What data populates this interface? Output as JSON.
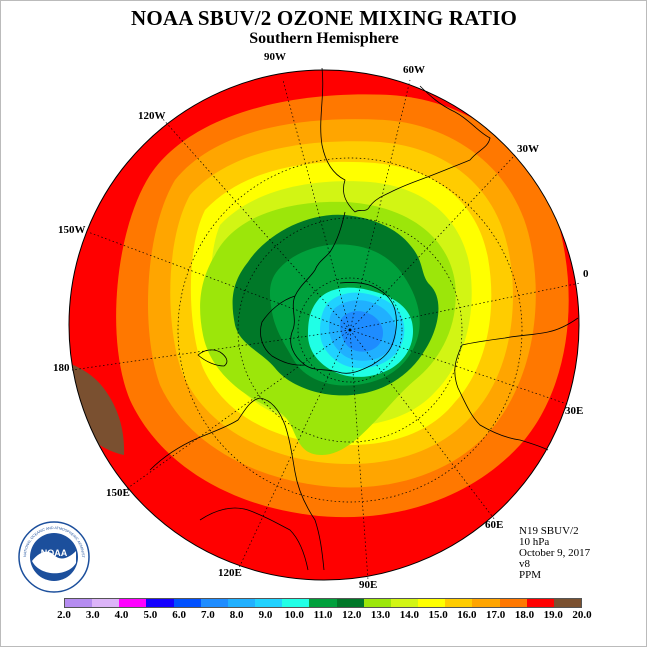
{
  "title": "NOAA SBUV/2 OZONE MIXING RATIO",
  "subtitle": "Southern Hemisphere",
  "longitude_labels": [
    "90W",
    "60W",
    "30W",
    "0",
    "30E",
    "60E",
    "90E",
    "120E",
    "150E",
    "180",
    "150W",
    "120W"
  ],
  "info": {
    "satellite": "N19 SBUV/2",
    "level": "10 hPa",
    "date": "October 9, 2017",
    "version": "v8",
    "units": "PPM"
  },
  "logo": {
    "text": "NOAA",
    "ring_text": "NATIONAL OCEANIC AND ATMOSPHERIC ADMINISTRATION · U.S. DEPARTMENT OF COMMERCE"
  },
  "colorbar": {
    "labels": [
      "2.0",
      "3.0",
      "4.0",
      "5.0",
      "6.0",
      "7.0",
      "8.0",
      "9.0",
      "10.0",
      "11.0",
      "12.0",
      "13.0",
      "14.0",
      "15.0",
      "16.0",
      "17.0",
      "18.0",
      "19.0",
      "20.0"
    ],
    "colors": [
      "#b58cf0",
      "#dcb4f8",
      "#ff00ff",
      "#1400ff",
      "#0050ff",
      "#1e8cff",
      "#20b0ff",
      "#20d2ff",
      "#20ffe6",
      "#00a03c",
      "#007828",
      "#9ce60a",
      "#d2f514",
      "#ffff00",
      "#ffcc00",
      "#ffa500",
      "#ff7800",
      "#ff0000",
      "#7a5030"
    ]
  }
}
